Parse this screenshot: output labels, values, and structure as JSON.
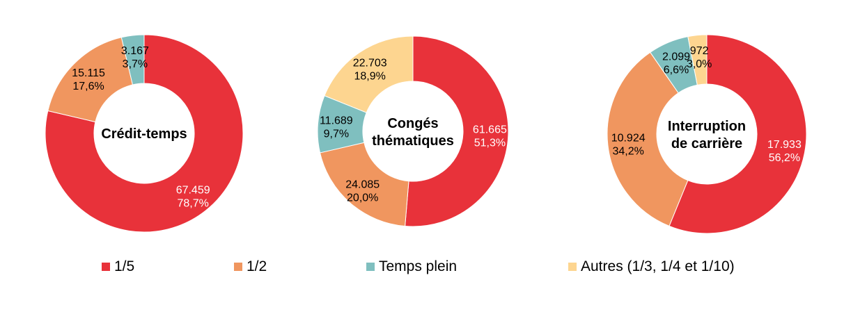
{
  "chart_data": [
    {
      "type": "pie",
      "title": "Crédit-temps",
      "categories": [
        "1/5",
        "1/2",
        "Temps plein"
      ],
      "values": [
        67459,
        15115,
        3167
      ],
      "value_labels": [
        "67.459",
        "15.115",
        "3.167"
      ],
      "percent_labels": [
        "78,7%",
        "17,6%",
        "3,7%"
      ]
    },
    {
      "type": "pie",
      "title": "Congés\nthématiques",
      "categories": [
        "1/5",
        "1/2",
        "Temps plein",
        "Autres (1/3, 1/4 et 1/10)"
      ],
      "values": [
        61665,
        24085,
        11689,
        22703
      ],
      "value_labels": [
        "61.665",
        "24.085",
        "11.689",
        "22.703"
      ],
      "percent_labels": [
        "51,3%",
        "20,0%",
        "9,7%",
        "18,9%"
      ]
    },
    {
      "type": "pie",
      "title": "Interruption\nde carrière",
      "categories": [
        "1/5",
        "1/2",
        "Temps plein",
        "Autres (1/3, 1/4 et 1/10)"
      ],
      "values": [
        17933,
        10924,
        2099,
        972
      ],
      "value_labels": [
        "17.933",
        "10.924",
        "2.099",
        "972"
      ],
      "percent_labels": [
        "56,2%",
        "34,2%",
        "6,6%",
        "3,0%"
      ]
    }
  ],
  "legend": {
    "placement": "bottom",
    "items": [
      {
        "label": "1/5",
        "color": "#e8323a"
      },
      {
        "label": "1/2",
        "color": "#f0965f"
      },
      {
        "label": "Temps plein",
        "color": "#7fbfbf"
      },
      {
        "label": "Autres (1/3, 1/4 et 1/10)",
        "color": "#fdd590"
      }
    ]
  },
  "colors": {
    "1/5": "#e8323a",
    "1/2": "#f0965f",
    "Temps plein": "#7fbfbf",
    "Autres (1/3, 1/4 et 1/10)": "#fdd590"
  }
}
